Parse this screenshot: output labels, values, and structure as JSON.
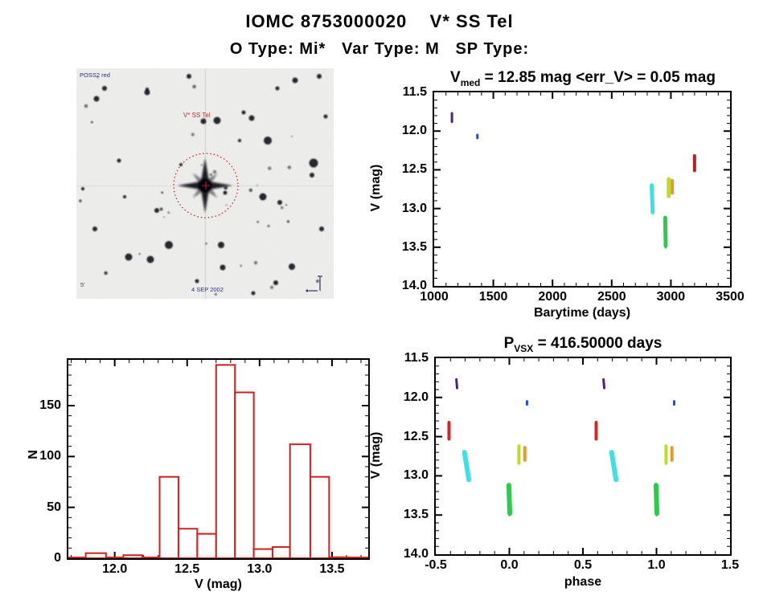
{
  "page": {
    "title": "IOMC 8753000020    V* SS Tel",
    "subtitle": "O Type: Mi*   Var Type: M   SP Type:"
  },
  "finder": {
    "target_label": "V* SS Tel",
    "survey_label": "POSS2 red",
    "date_label": "4 SEP 2002",
    "scale_label": "5'",
    "circle_color": "#c42828"
  },
  "chart_data": [
    {
      "id": "lightcurve",
      "type": "scatter",
      "title_base": "V",
      "title_sub": "med",
      "title_rest": " = 12.85 mag <err_V> = 0.05 mag",
      "xlabel": "Barytime (days)",
      "ylabel": "V (mag)",
      "xlim": [
        1000,
        3500
      ],
      "ylim": [
        11.5,
        14.0
      ],
      "xticks": [
        1000,
        1500,
        2000,
        2500,
        3000,
        3500
      ],
      "xtick_labels": [
        "1000",
        "1500",
        "2000",
        "2500",
        "3000",
        "3500"
      ],
      "yticks": [
        11.5,
        12.0,
        12.5,
        13.0,
        13.5,
        14.0
      ],
      "ytick_labels": [
        "11.5",
        "12.0",
        "12.5",
        "13.0",
        "13.5",
        "14.0"
      ],
      "xminor": 100,
      "yminor": 0.1,
      "clusters": [
        {
          "x1": 1150,
          "x2": 1150,
          "v1": 11.77,
          "v2": 11.88,
          "w": 3,
          "color": "#4b2288"
        },
        {
          "x1": 1365,
          "x2": 1365,
          "v1": 12.05,
          "v2": 12.09,
          "w": 3,
          "color": "#2a4bd4"
        },
        {
          "x1": 2838,
          "x2": 2846,
          "v1": 12.7,
          "v2": 13.05,
          "w": 5,
          "color": "#3fdfe4"
        },
        {
          "x1": 2952,
          "x2": 2956,
          "v1": 13.12,
          "v2": 13.48,
          "w": 5,
          "color": "#2ccc4a"
        },
        {
          "x1": 2954,
          "x2": 2954,
          "v1": 13.5,
          "v2": 13.51,
          "w": 2,
          "color": "#2ccc4a"
        },
        {
          "x1": 2982,
          "x2": 2982,
          "v1": 12.62,
          "v2": 12.84,
          "w": 5,
          "color": "#b6df25"
        },
        {
          "x1": 3012,
          "x2": 3012,
          "v1": 12.64,
          "v2": 12.8,
          "w": 4,
          "color": "#e6992e"
        },
        {
          "x1": 3200,
          "x2": 3200,
          "v1": 12.32,
          "v2": 12.51,
          "w": 4,
          "color": "#b52222"
        }
      ]
    },
    {
      "id": "histogram",
      "type": "bar",
      "xlabel": "V (mag)",
      "ylabel": "N",
      "xlim": [
        11.68,
        13.75
      ],
      "ylim": [
        195,
        0
      ],
      "xticks": [
        12.0,
        12.5,
        13.0,
        13.5
      ],
      "xtick_labels": [
        "12.0",
        "12.5",
        "13.0",
        "13.5"
      ],
      "yticks": [
        0,
        50,
        100,
        150
      ],
      "ytick_labels": [
        "0",
        "50",
        "100",
        "150"
      ],
      "xminor": 0.1,
      "yminor": 10,
      "bar_color": "#cf2020",
      "bars": [
        {
          "x0": 11.8,
          "x1": 11.94,
          "n": 5
        },
        {
          "x0": 12.06,
          "x1": 12.19,
          "n": 3
        },
        {
          "x0": 12.31,
          "x1": 12.44,
          "n": 80
        },
        {
          "x0": 12.44,
          "x1": 12.57,
          "n": 29
        },
        {
          "x0": 12.57,
          "x1": 12.7,
          "n": 24
        },
        {
          "x0": 12.7,
          "x1": 12.83,
          "n": 190
        },
        {
          "x0": 12.83,
          "x1": 12.96,
          "n": 163
        },
        {
          "x0": 12.96,
          "x1": 13.09,
          "n": 9
        },
        {
          "x0": 13.09,
          "x1": 13.21,
          "n": 11
        },
        {
          "x0": 13.21,
          "x1": 13.35,
          "n": 112
        },
        {
          "x0": 13.35,
          "x1": 13.48,
          "n": 80
        },
        {
          "x0": 13.48,
          "x1": 13.61,
          "n": 1
        }
      ]
    },
    {
      "id": "phase",
      "type": "scatter",
      "title_base": "P",
      "title_sub": "VSX",
      "title_rest": " = 416.50000 days",
      "xlabel": "phase",
      "ylabel": "V (mag)",
      "xlim": [
        -0.5,
        1.5
      ],
      "ylim": [
        11.5,
        14.0
      ],
      "xticks": [
        -0.5,
        0.0,
        0.5,
        1.0,
        1.5
      ],
      "xtick_labels": [
        "-0.5",
        "0.0",
        "0.5",
        "1.0",
        "1.5"
      ],
      "yticks": [
        11.5,
        12.0,
        12.5,
        13.0,
        13.5,
        14.0
      ],
      "ytick_labels": [
        "11.5",
        "12.0",
        "12.5",
        "13.0",
        "13.5",
        "14.0"
      ],
      "xminor": 0.1,
      "yminor": 0.1,
      "repeat_dx": 1.0,
      "clusters": [
        {
          "x1": -0.36,
          "x2": -0.355,
          "v1": 11.77,
          "v2": 11.88,
          "w": 3,
          "color": "#4b2288"
        },
        {
          "x1": 0.12,
          "x2": 0.12,
          "v1": 12.05,
          "v2": 12.09,
          "w": 3,
          "color": "#2a4bd4"
        },
        {
          "x1": -0.41,
          "x2": -0.41,
          "v1": 12.32,
          "v2": 12.53,
          "w": 4,
          "color": "#d02828"
        },
        {
          "x1": -0.305,
          "x2": -0.275,
          "v1": 12.7,
          "v2": 13.05,
          "w": 6,
          "color": "#3fdfe4"
        },
        {
          "x1": 0.065,
          "x2": 0.065,
          "v1": 12.62,
          "v2": 12.84,
          "w": 4,
          "color": "#b6df25"
        },
        {
          "x1": 0.105,
          "x2": 0.105,
          "v1": 12.64,
          "v2": 12.8,
          "w": 4,
          "color": "#e6992e"
        },
        {
          "x1": -0.003,
          "x2": 0.003,
          "v1": 13.12,
          "v2": 13.48,
          "w": 6,
          "color": "#2ccc4a"
        },
        {
          "x1": 0.0,
          "x2": 0.0,
          "v1": 13.5,
          "v2": 13.51,
          "w": 2,
          "color": "#2ccc4a"
        }
      ]
    }
  ]
}
